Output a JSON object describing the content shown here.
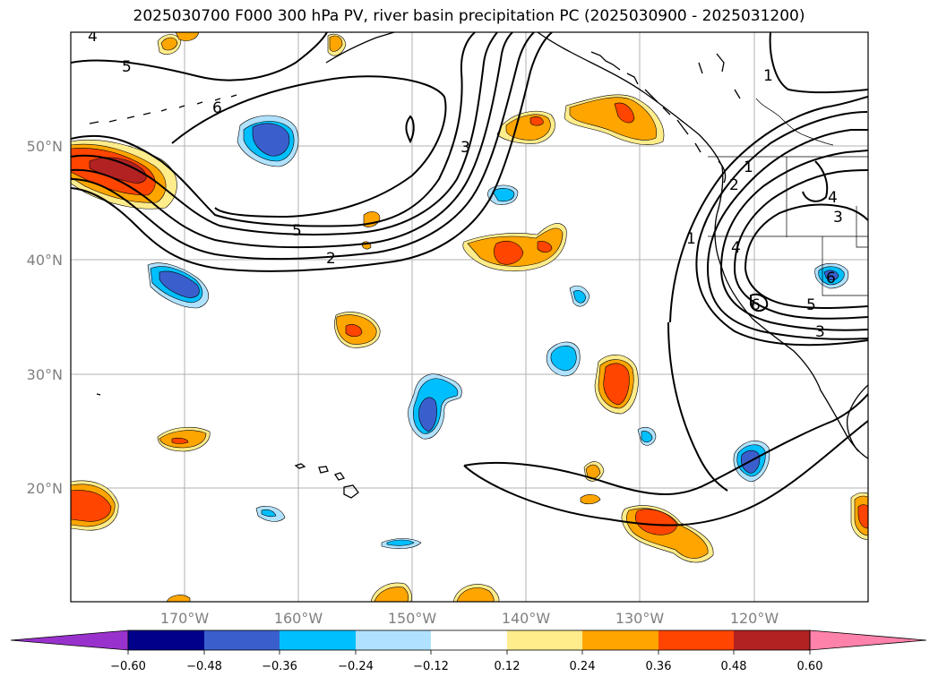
{
  "title": "2025030700 F000 300 hPa PV, river basin precipitation PC (2025030900 - 2025031200)",
  "map": {
    "lon_range": [
      -180,
      -110
    ],
    "lat_range": [
      10,
      60
    ],
    "lon_ticks": [
      "170°W",
      "160°W",
      "150°W",
      "140°W",
      "130°W",
      "120°W"
    ],
    "lat_ticks": [
      "50°N",
      "40°N",
      "30°N",
      "20°N"
    ],
    "gridlines": true,
    "contour_labels": [
      "4",
      "5",
      "6",
      "5",
      "2",
      "3",
      "1",
      "2",
      "1",
      "4",
      "1",
      "6",
      "5",
      "3",
      "4",
      "3",
      "6"
    ]
  },
  "colorbar": {
    "ticks": [
      "−0.60",
      "−0.48",
      "−0.36",
      "−0.24",
      "−0.12",
      "0.12",
      "0.24",
      "0.36",
      "0.48",
      "0.60"
    ],
    "colors": [
      "#9932cc",
      "#00008b",
      "#3a5fcd",
      "#00bfff",
      "#b0e2ff",
      "#ffffff",
      "#ffec8b",
      "#ffa500",
      "#ff4500",
      "#b22222",
      "#ff82ab"
    ]
  }
}
